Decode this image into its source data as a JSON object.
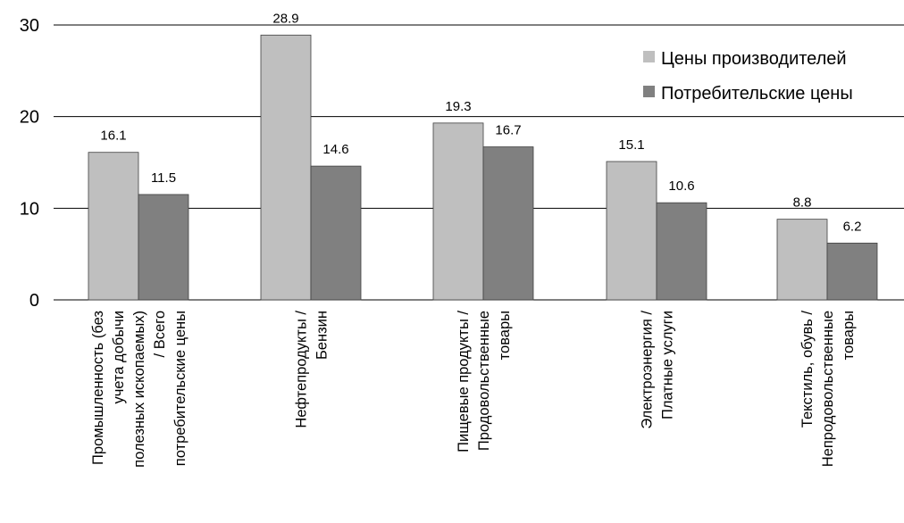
{
  "chart_data": {
    "type": "bar",
    "categories": [
      [
        "Промышленность (без",
        "учета добычи",
        "полезных ископаемых)",
        "/ Всего",
        "потребительские цены"
      ],
      [
        "Нефтепродукты /",
        "Бензин"
      ],
      [
        "Пищевые продукты /",
        "Продовольственные",
        "товары"
      ],
      [
        "Электроэнергия /",
        "Платные услуги"
      ],
      [
        "Текстиль, обувь /",
        "Непродовольственные",
        "товары"
      ]
    ],
    "series": [
      {
        "name": "Цены производителей",
        "color": "#bfbfbf",
        "values": [
          16.1,
          28.9,
          19.3,
          15.1,
          8.8
        ]
      },
      {
        "name": "Потребительские цены",
        "color": "#808080",
        "values": [
          11.5,
          14.6,
          16.7,
          10.6,
          6.2
        ]
      }
    ],
    "value_labels": [
      [
        "16.1",
        "28.9",
        "19.3",
        "15.1",
        "8.8"
      ],
      [
        "11.5",
        "14.6",
        "16.7",
        "10.6",
        "6.2"
      ]
    ],
    "yticks": [
      {
        "value": 0,
        "label": "0"
      },
      {
        "value": 10,
        "label": "10"
      },
      {
        "value": 20,
        "label": "20"
      },
      {
        "value": 30,
        "label": "30"
      }
    ],
    "ylim": [
      0,
      30
    ],
    "grid": true,
    "legend_position": "top-right",
    "gridline_color": "#000000"
  }
}
